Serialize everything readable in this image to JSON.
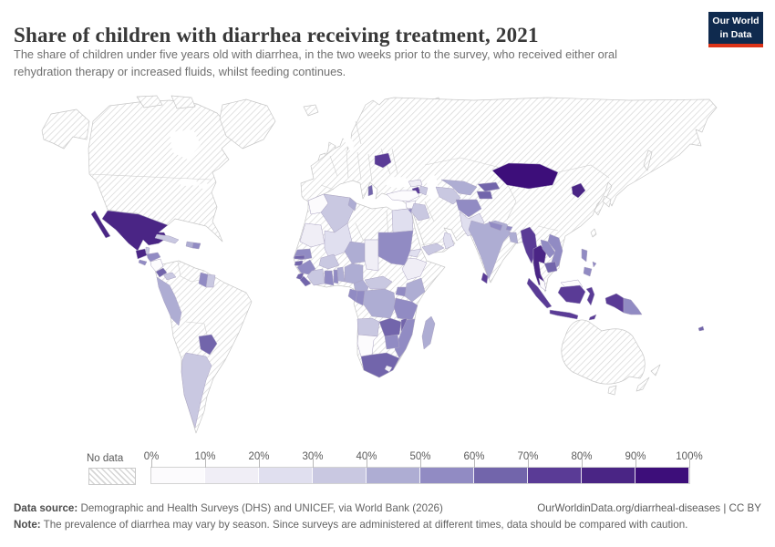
{
  "header": {
    "title": "Share of children with diarrhea receiving treatment, 2021",
    "subtitle": "The share of children under five years old with diarrhea, in the two weeks prior to the survey, who received either oral rehydration therapy or increased fluids, whilst feeding continues.",
    "logo": {
      "line1": "Our World",
      "line2": "in Data",
      "bg_color": "#0f2a4e",
      "accent_color": "#dc3318"
    }
  },
  "legend": {
    "no_data_label": "No data",
    "tick_labels": [
      "0%",
      "10%",
      "20%",
      "30%",
      "40%",
      "50%",
      "60%",
      "70%",
      "80%",
      "90%",
      "100%"
    ]
  },
  "footer": {
    "data_source_label": "Data source:",
    "data_source_text": " Demographic and Health Surveys (DHS) and UNICEF, via World Bank (2026)",
    "attribution": "OurWorldinData.org/diarrheal-diseases | CC BY",
    "note_label": "Note:",
    "note_text": " The prevalence of diarrhea may vary by season. Since surveys are administered at different times, data should be compared with caution."
  },
  "chart_data": {
    "type": "choropleth",
    "title": "Share of children with diarrhea receiving treatment, 2021",
    "unit": "%",
    "year": 2021,
    "legend_position": "bottom",
    "bin_edges": [
      0,
      10,
      20,
      30,
      40,
      50,
      60,
      70,
      80,
      90,
      100
    ],
    "bin_colors": [
      "#fcfbfd",
      "#f0eef6",
      "#e0dfef",
      "#c9c8e1",
      "#aeadd3",
      "#918bc3",
      "#7265ab",
      "#5a3b96",
      "#4a2585",
      "#3d0e7a"
    ],
    "no_data": {
      "label": "No data",
      "style": "diagonal-hatch",
      "hatch_color": "#d5d5d5"
    },
    "values": {
      "Mexico": 85,
      "Guatemala": 85,
      "Belize": 35,
      "Honduras": 55,
      "El Salvador": 55,
      "Nicaragua": 8,
      "Costa Rica": 62,
      "Panama": 35,
      "Cuba": 35,
      "Haiti": 45,
      "Dominican Republic": 55,
      "Peru": 48,
      "Guyana": 55,
      "Suriname": 38,
      "Paraguay": 65,
      "Argentina": 32,
      "Belarus": 72,
      "Albania": 65,
      "Georgia": 15,
      "Armenia": 72,
      "Azerbaijan": 35,
      "Turkey": 8,
      "Syria": 8,
      "Jordan": 55,
      "Iraq": 35,
      "Yemen": 33,
      "Oman": 25,
      "Turkmenistan": 35,
      "Uzbekistan": 45,
      "Kyrgyzstan": 65,
      "Tajikistan": 62,
      "Afghanistan": 52,
      "Pakistan": 28,
      "India": 42,
      "Nepal": 52,
      "Bhutan": 52,
      "Bangladesh": 47,
      "Sri Lanka": 72,
      "Mongolia": 92,
      "North Korea": 82,
      "Myanmar": 75,
      "Thailand": 82,
      "Laos": 52,
      "Vietnam": 52,
      "Cambodia": 62,
      "Malaysia": 8,
      "Indonesia": 72,
      "Timor-Leste": 72,
      "Papua New Guinea": 55,
      "Philippines": 55,
      "Fiji": 65,
      "Morocco": 8,
      "Algeria": 35,
      "Tunisia": 45,
      "Egypt": 25,
      "Mauritania": 12,
      "Mali": 25,
      "Niger": 42,
      "Chad": 18,
      "Sudan": 55,
      "Eritrea": 25,
      "Ethiopia": 15,
      "Senegal": 55,
      "Gambia": 65,
      "Guinea-Bissau": 62,
      "Guinea": 52,
      "Sierra Leone": 68,
      "Liberia": 68,
      "Cote d'Ivoire": 38,
      "Ghana": 52,
      "Togo": 55,
      "Benin": 45,
      "Burkina Faso": 35,
      "Nigeria": 42,
      "Cameroon": 45,
      "Central African Republic": 35,
      "Uganda": 55,
      "Kenya": 45,
      "Democratic Republic of Congo": 42,
      "Congo": 52,
      "Gabon": 52,
      "Tanzania": 55,
      "Angola": 32,
      "Zambia": 65,
      "Malawi": 65,
      "Mozambique": 55,
      "Zimbabwe": 55,
      "Namibia": 8,
      "South Africa": 62,
      "Lesotho": 15,
      "Madagascar": 45
    },
    "no_data_regions": [
      "Canada",
      "United States",
      "Greenland",
      "Brazil",
      "Colombia",
      "Venezuela",
      "Ecuador",
      "Bolivia",
      "Chile",
      "Uruguay",
      "Europe (most countries)",
      "Ukraine",
      "Russia",
      "Kazakhstan",
      "Iran",
      "Saudi Arabia",
      "Libya",
      "Western Sahara",
      "Somalia",
      "South Sudan",
      "Botswana",
      "China",
      "Japan",
      "South Korea",
      "Taiwan",
      "Australia",
      "New Zealand",
      "French Guiana"
    ]
  }
}
